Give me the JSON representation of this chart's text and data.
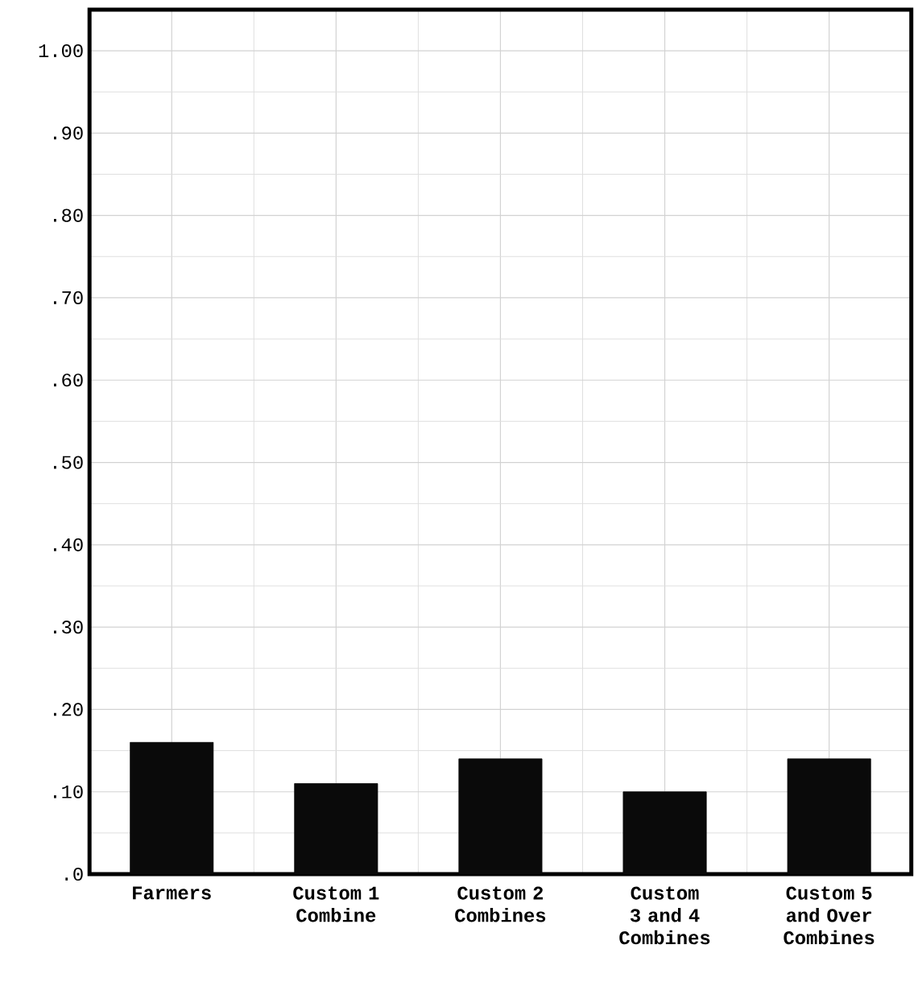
{
  "chart_data": {
    "type": "bar",
    "categories": [
      "Farmers",
      "Custom 1 Combine",
      "Custom 2 Combines",
      "Custom 3 and 4 Combines",
      "Custom 5 and Over Combines"
    ],
    "values": [
      0.16,
      0.11,
      0.14,
      0.1,
      0.14
    ],
    "color": "#0a0a0a",
    "ylim": [
      0,
      1.05
    ],
    "yticks": [
      {
        "value": 0,
        "label": ".0"
      },
      {
        "value": 0.1,
        "label": ".10"
      },
      {
        "value": 0.2,
        "label": ".20"
      },
      {
        "value": 0.3,
        "label": ".30"
      },
      {
        "value": 0.4,
        "label": ".40"
      },
      {
        "value": 0.5,
        "label": ".50"
      },
      {
        "value": 0.6,
        "label": ".60"
      },
      {
        "value": 0.7,
        "label": ".70"
      },
      {
        "value": 0.8,
        "label": ".80"
      },
      {
        "value": 0.9,
        "label": ".90"
      },
      {
        "value": 1.0,
        "label": "1.00"
      }
    ],
    "grid": true
  }
}
